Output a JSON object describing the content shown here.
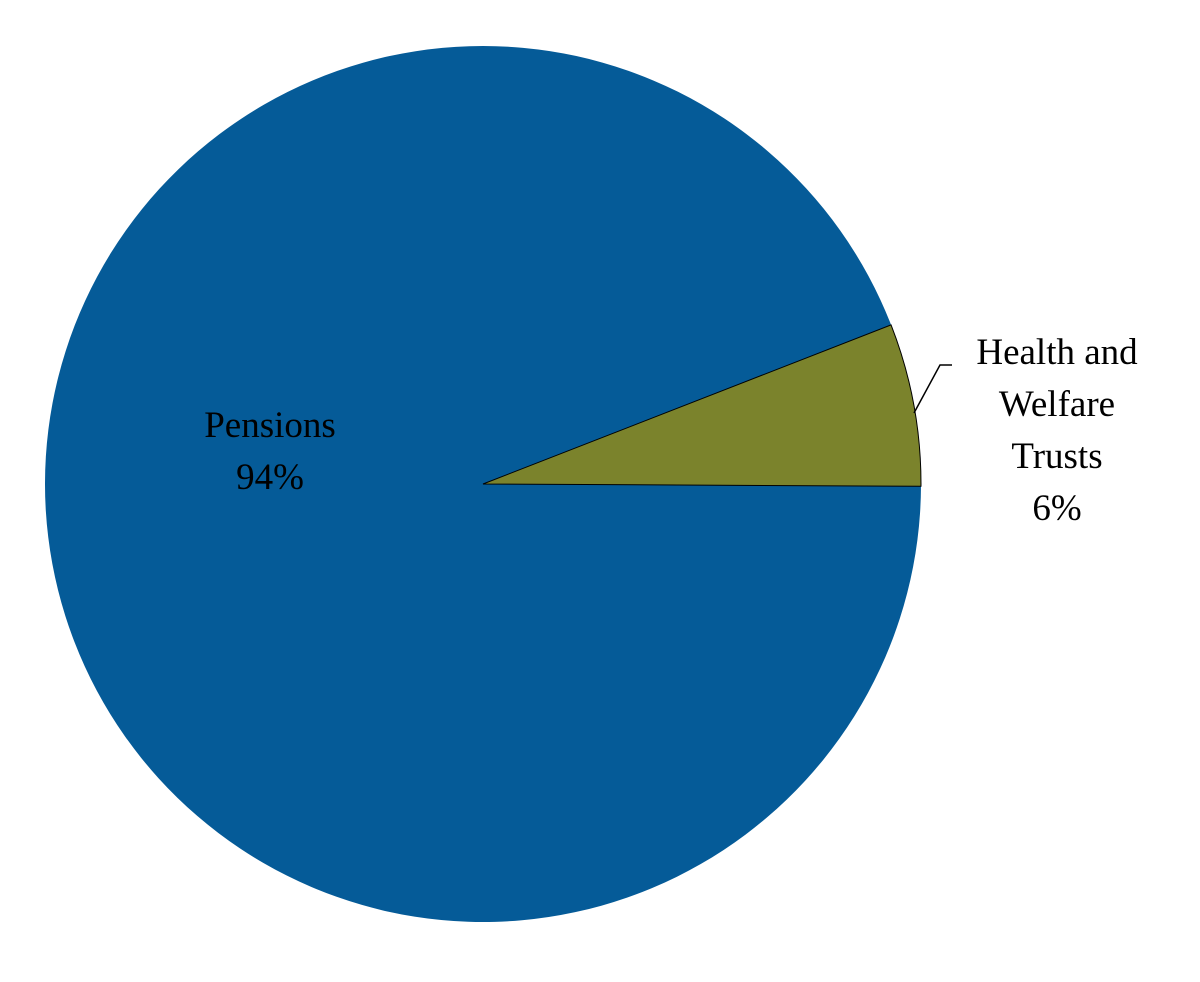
{
  "chart_data": {
    "type": "pie",
    "title": "",
    "slices": [
      {
        "name": "Pensions",
        "value": 94,
        "label_lines": [
          "Pensions",
          "94%"
        ],
        "color": "#055B98"
      },
      {
        "name": "Health and Welfare Trusts",
        "value": 6,
        "label_lines": [
          "Health and",
          "Welfare",
          "Trusts",
          "6%"
        ],
        "color": "#7B832C"
      }
    ],
    "legend": "none",
    "leader_lines": true
  }
}
